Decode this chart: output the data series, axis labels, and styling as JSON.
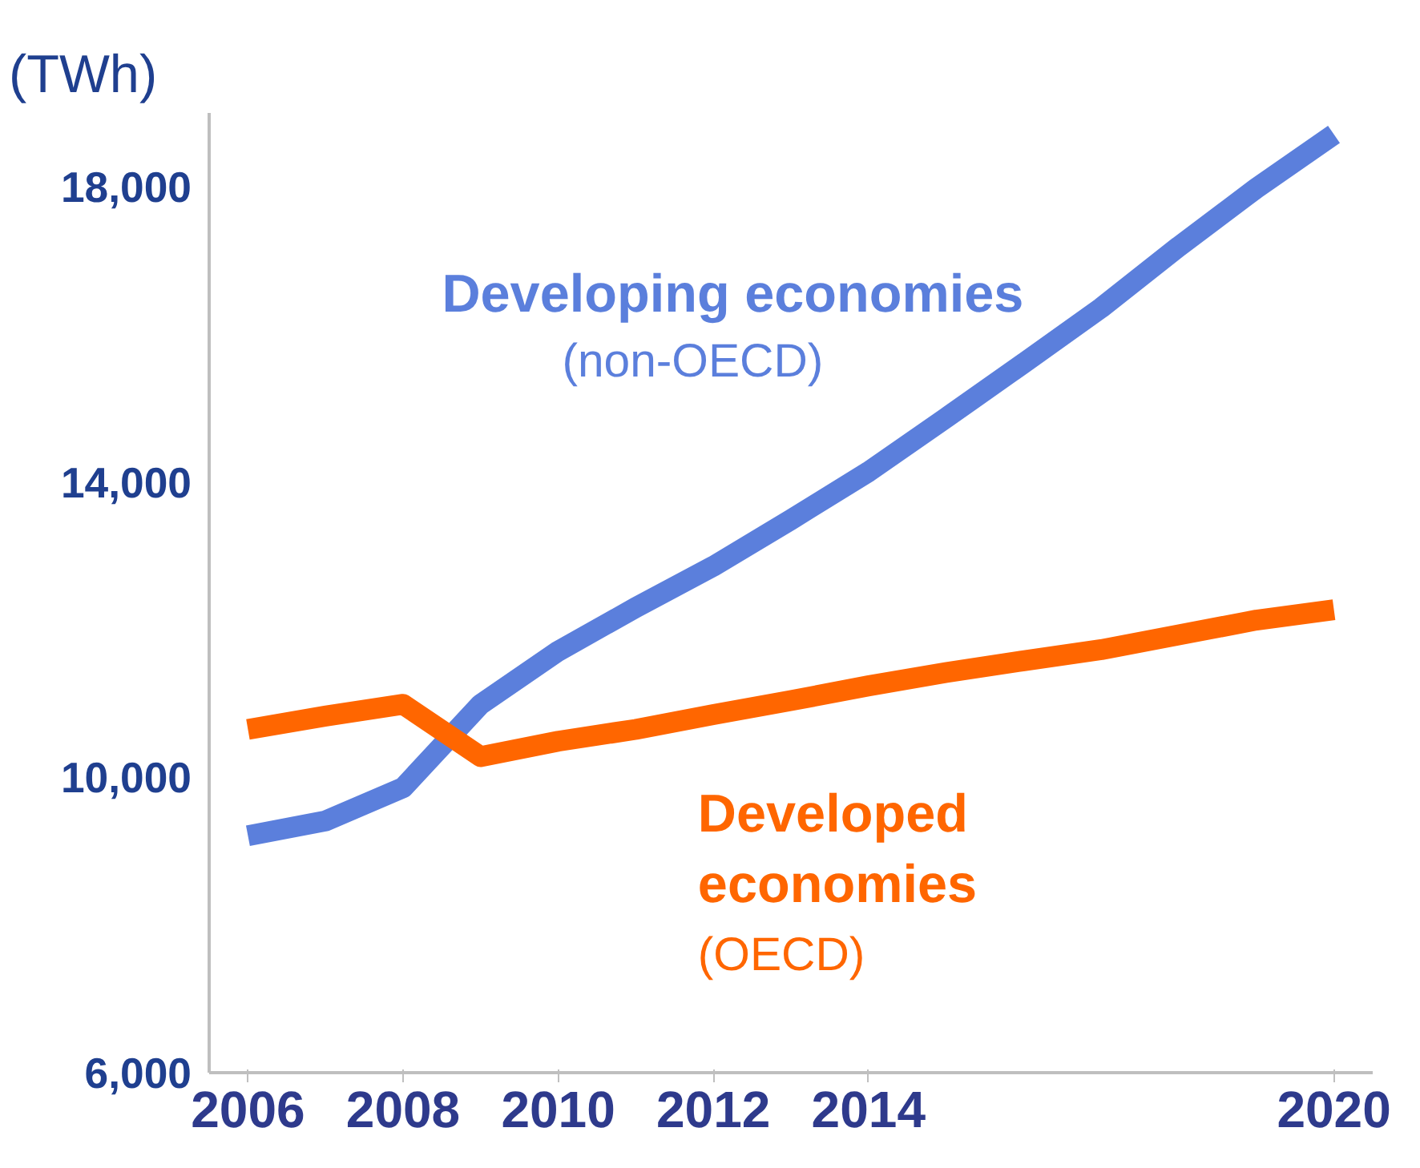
{
  "chart_data": {
    "type": "line",
    "ylabel": "(TWh)",
    "x": [
      2006,
      2007,
      2008,
      2009,
      2010,
      2011,
      2012,
      2013,
      2014,
      2015,
      2016,
      2017,
      2018,
      2019,
      2020
    ],
    "series": [
      {
        "name": "Developing economies",
        "color": "#5b7fdc",
        "values": [
          9210,
          9410,
          9860,
          10990,
          11710,
          12300,
          12860,
          13490,
          14140,
          14870,
          15610,
          16360,
          17190,
          17980,
          18710
        ]
      },
      {
        "name": "Developed economies",
        "color": "#ff6600",
        "values": [
          10650,
          10830,
          10990,
          10280,
          10490,
          10650,
          10850,
          11040,
          11240,
          11420,
          11580,
          11730,
          11930,
          12130,
          12270
        ]
      }
    ],
    "annotations": [
      "(non-OECD)",
      "(OECD)"
    ],
    "xlim": [
      2005.5,
      2020.5
    ],
    "xticks": [
      2006,
      2008,
      2010,
      2012,
      2014,
      2020
    ],
    "ylim": [
      6000,
      19000
    ],
    "yticks": [
      {
        "value": 6000,
        "label": "6,000"
      },
      {
        "value": 10000,
        "label": "10,000"
      },
      {
        "value": 14000,
        "label": "14,000"
      },
      {
        "value": 18000,
        "label": "18,000"
      }
    ],
    "grid": false,
    "legend": false,
    "marker": "none",
    "line_style": "solid"
  }
}
